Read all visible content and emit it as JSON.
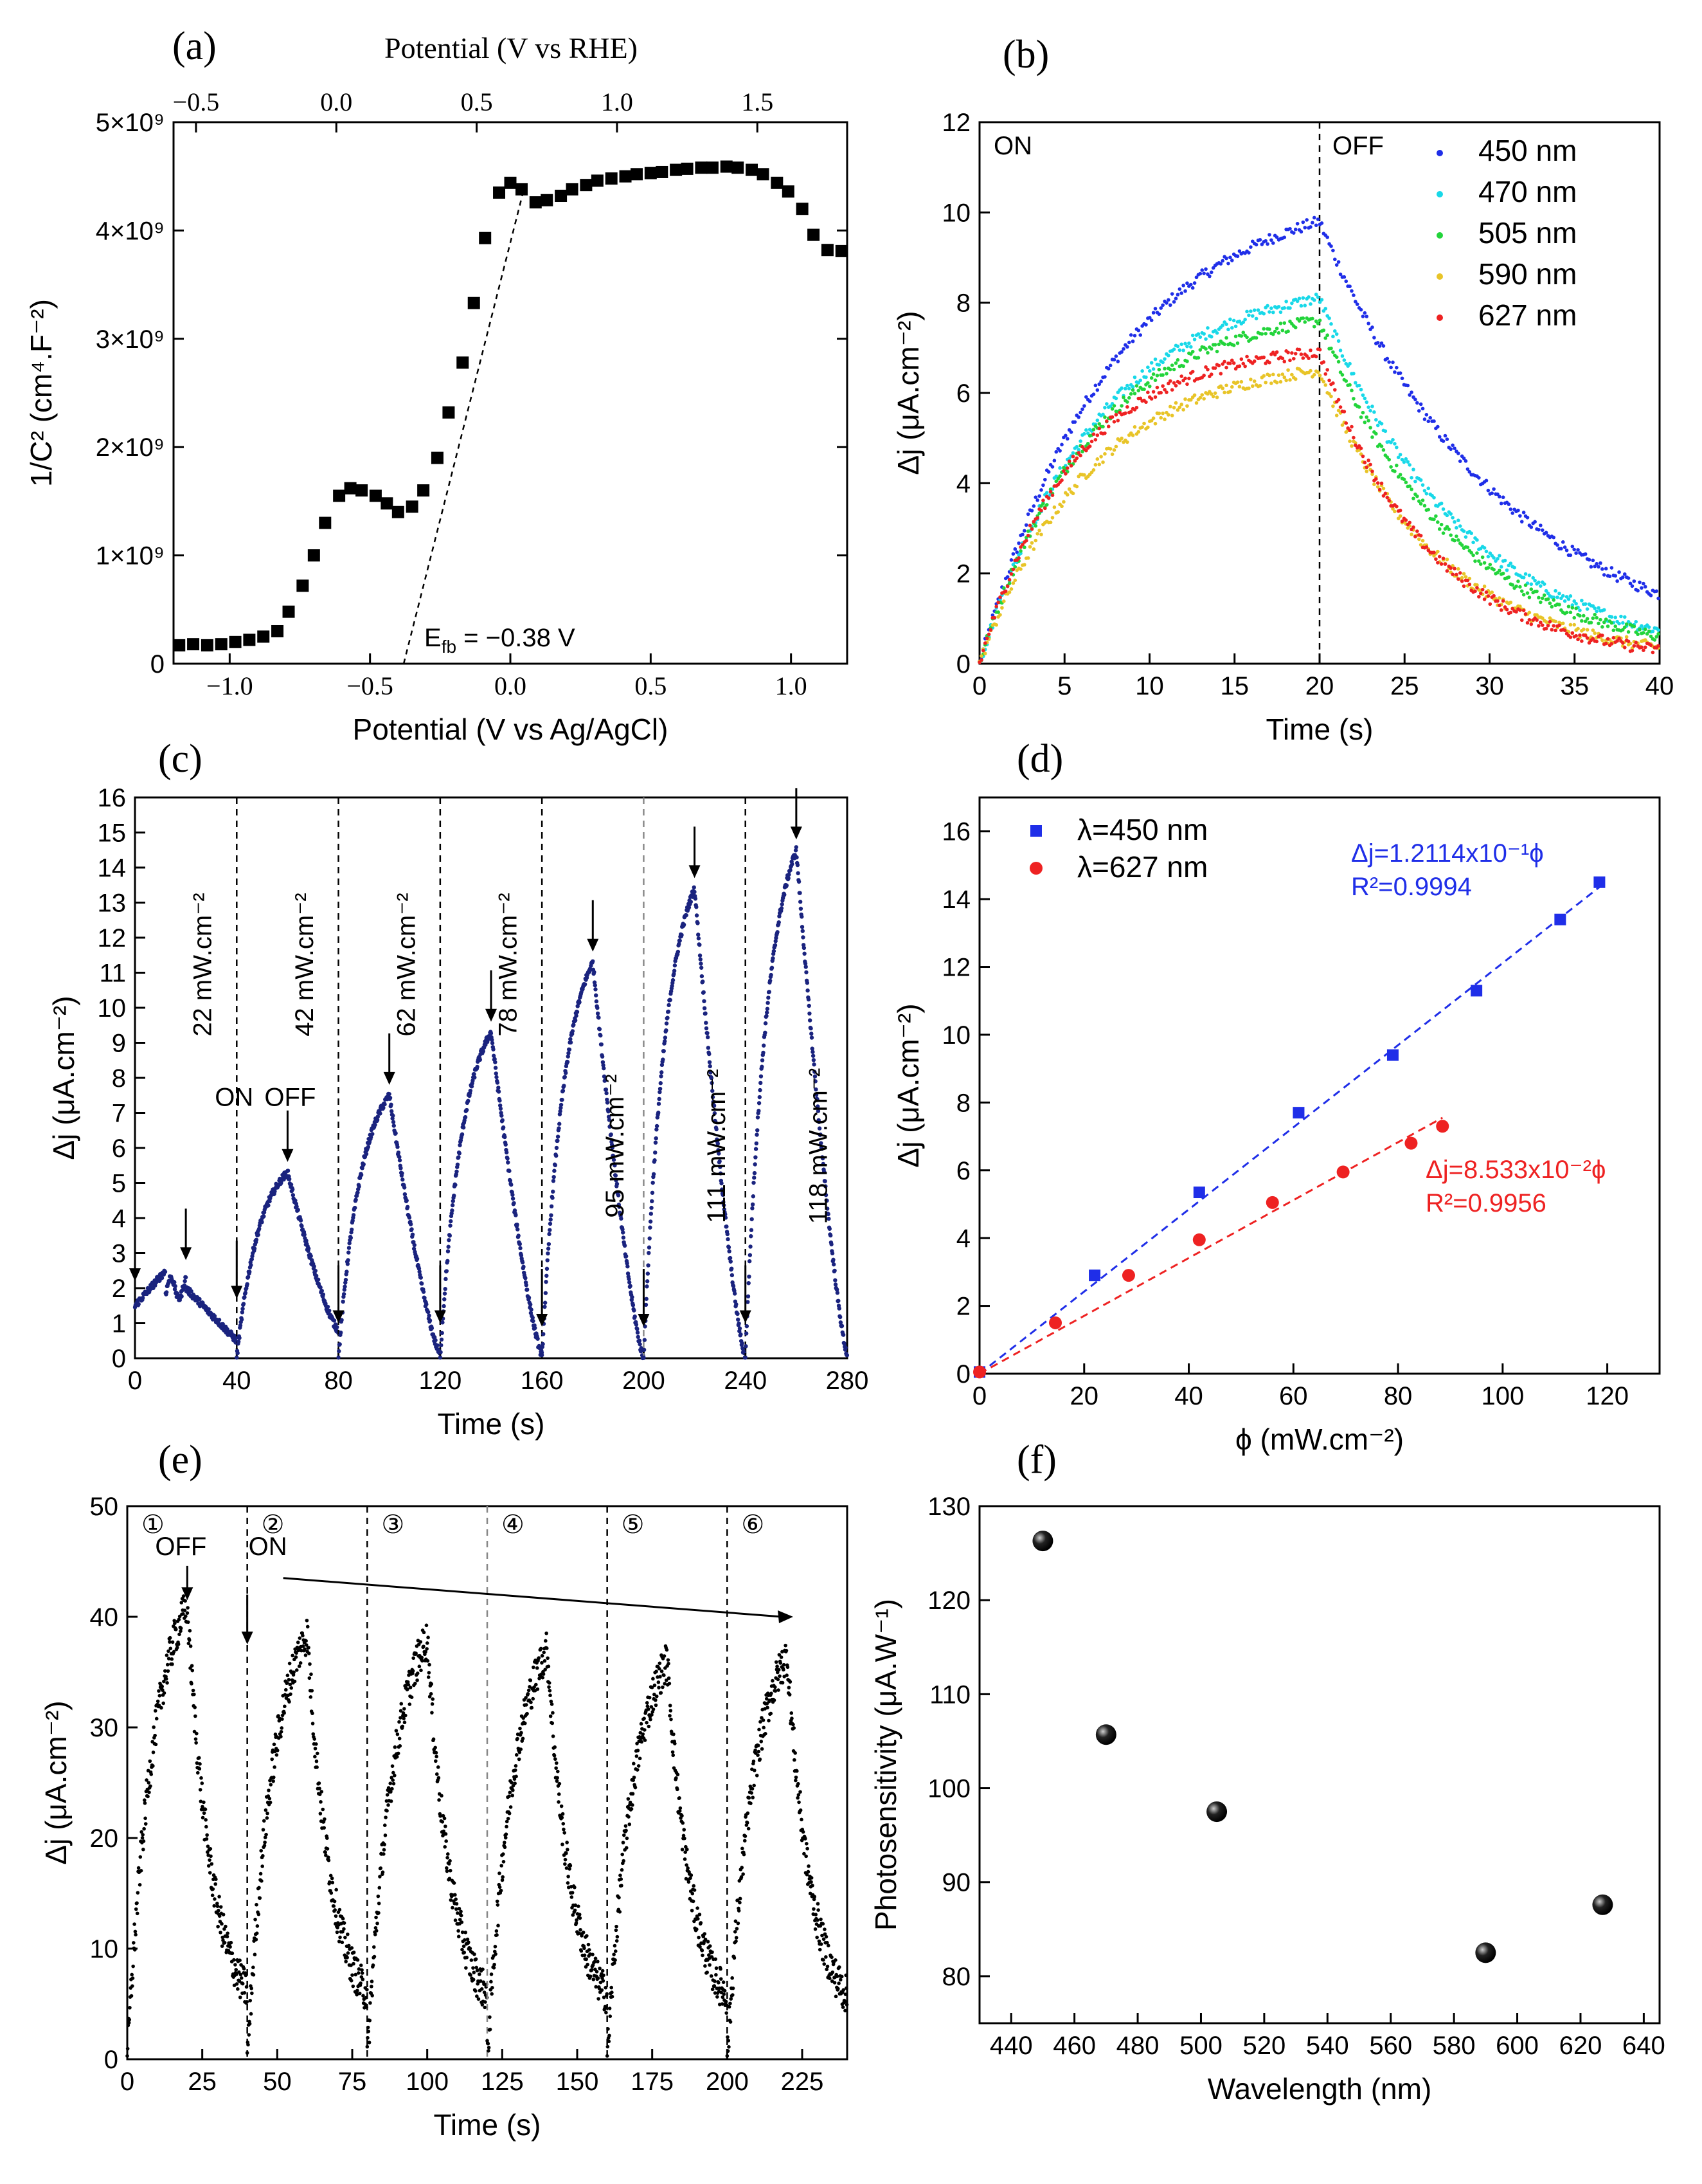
{
  "panels": {
    "a": "(a)",
    "b": "(b)",
    "c": "(c)",
    "d": "(d)",
    "e": "(e)",
    "f": "(f)"
  },
  "colors": {
    "c450": "#1f2ee8",
    "c470": "#18d8e8",
    "c505": "#22d43a",
    "c590": "#e8c428",
    "c627": "#ee2222",
    "navy": "#1a237e",
    "fit450": "#1f2ee8",
    "fit627": "#ee2222"
  },
  "chart_data": [
    {
      "id": "a",
      "type": "scatter",
      "title": "",
      "xlabel": "Potential (V vs Ag/AgCl)",
      "xlabel_top": "Potential (V vs RHE)",
      "ylabel": "1/C² (cm⁴.F⁻²)",
      "xlim": [
        -1.2,
        1.2
      ],
      "ylim": [
        0,
        5000000000.0
      ],
      "x_ticks": [
        "−1.0",
        "−0.5",
        "0.0",
        "0.5",
        "1.0"
      ],
      "x_tick_values": [
        -1.0,
        -0.5,
        0.0,
        0.5,
        1.0
      ],
      "x_top_ticks": [
        "−0.5",
        "0.0",
        "0.5",
        "1.0",
        "1.5"
      ],
      "x_top_tick_values": [
        -0.5,
        0.0,
        0.5,
        1.0,
        1.5
      ],
      "y_ticks": [
        "0",
        "1×10⁹",
        "2×10⁹",
        "3×10⁹",
        "4×10⁹",
        "5×10⁹"
      ],
      "y_tick_values": [
        0,
        1000000000.0,
        2000000000.0,
        3000000000.0,
        4000000000.0,
        5000000000.0
      ],
      "annotation": "E",
      "annotation_sub": "fb",
      "annotation_value": " = −0.38 V",
      "x": [
        -1.18,
        -1.13,
        -1.08,
        -1.03,
        -0.98,
        -0.93,
        -0.88,
        -0.83,
        -0.79,
        -0.74,
        -0.7,
        -0.66,
        -0.61,
        -0.57,
        -0.53,
        -0.48,
        -0.44,
        -0.4,
        -0.35,
        -0.31,
        -0.26,
        -0.22,
        -0.17,
        -0.13,
        -0.09,
        -0.04,
        0.0,
        0.04,
        0.09,
        0.13,
        0.18,
        0.22,
        0.27,
        0.31,
        0.36,
        0.41,
        0.45,
        0.5,
        0.54,
        0.59,
        0.63,
        0.68,
        0.72,
        0.77,
        0.81,
        0.86,
        0.9,
        0.95,
        0.99,
        1.04,
        1.08,
        1.13,
        1.18
      ],
      "y": [
        170000000.0,
        180000000.0,
        170000000.0,
        180000000.0,
        200000000.0,
        220000000.0,
        250000000.0,
        300000000.0,
        480000000.0,
        720000000.0,
        1000000000.0,
        1300000000.0,
        1550000000.0,
        1620000000.0,
        1600000000.0,
        1550000000.0,
        1480000000.0,
        1400000000.0,
        1450000000.0,
        1600000000.0,
        1900000000.0,
        2320000000.0,
        2780000000.0,
        3330000000.0,
        3930000000.0,
        4350000000.0,
        4440000000.0,
        4380000000.0,
        4260000000.0,
        4280000000.0,
        4320000000.0,
        4380000000.0,
        4420000000.0,
        4460000000.0,
        4480000000.0,
        4500000000.0,
        4520000000.0,
        4530000000.0,
        4540000000.0,
        4560000000.0,
        4570000000.0,
        4580000000.0,
        4580000000.0,
        4590000000.0,
        4580000000.0,
        4560000000.0,
        4520000000.0,
        4440000000.0,
        4360000000.0,
        4200000000.0,
        3960000000.0,
        3820000000.0,
        3810000000.0
      ],
      "fit_line": {
        "x": [
          -0.38,
          0.05
        ],
        "y": [
          0,
          4400000000.0
        ]
      }
    },
    {
      "id": "b",
      "type": "scatter",
      "xlabel": "Time (s)",
      "ylabel": "Δj (μA.cm⁻²)",
      "xlim": [
        0,
        40
      ],
      "ylim": [
        0,
        12
      ],
      "x_ticks": [
        "0",
        "5",
        "10",
        "15",
        "20",
        "25",
        "30",
        "35",
        "40"
      ],
      "x_tick_values": [
        0,
        5,
        10,
        15,
        20,
        25,
        30,
        35,
        40
      ],
      "y_ticks": [
        "0",
        "2",
        "4",
        "6",
        "8",
        "10",
        "12"
      ],
      "y_tick_values": [
        0,
        2,
        4,
        6,
        8,
        10,
        12
      ],
      "on_label": "ON",
      "off_label": "OFF",
      "switch_time": 20,
      "series": [
        {
          "name": "450 nm",
          "color_key": "c450",
          "peak": 9.8,
          "tau_on": 8.0,
          "tau_off": 11.0,
          "offset": 0.0
        },
        {
          "name": "470 nm",
          "color_key": "c470",
          "peak": 8.1,
          "tau_on": 7.0,
          "tau_off": 8.5,
          "offset": 0.0
        },
        {
          "name": "505 nm",
          "color_key": "c505",
          "peak": 7.6,
          "tau_on": 6.5,
          "tau_off": 8.0,
          "offset": 0.0
        },
        {
          "name": "590 nm",
          "color_key": "c590",
          "peak": 6.5,
          "tau_on": 6.5,
          "tau_off": 7.0,
          "offset": 0.0
        },
        {
          "name": "627 nm",
          "color_key": "c627",
          "peak": 6.9,
          "tau_on": 5.5,
          "tau_off": 6.5,
          "offset": 0.0
        }
      ]
    },
    {
      "id": "c",
      "type": "scatter",
      "xlabel": "Time (s)",
      "ylabel": "Δj (μA.cm⁻²)",
      "xlim": [
        0,
        280
      ],
      "ylim": [
        0,
        16
      ],
      "x_ticks": [
        "0",
        "40",
        "80",
        "120",
        "160",
        "200",
        "240",
        "280"
      ],
      "x_tick_values": [
        0,
        40,
        80,
        120,
        160,
        200,
        240,
        280
      ],
      "y_ticks": [
        "0",
        "1",
        "2",
        "3",
        "4",
        "5",
        "6",
        "7",
        "8",
        "9",
        "10",
        "11",
        "12",
        "13",
        "14",
        "15",
        "16"
      ],
      "y_tick_values": [
        0,
        1,
        2,
        3,
        4,
        5,
        6,
        7,
        8,
        9,
        10,
        11,
        12,
        13,
        14,
        15,
        16
      ],
      "on_label": "ON",
      "off_label": "OFF",
      "cycles": [
        {
          "start": 0,
          "peak": 2.5,
          "end": 0.5,
          "label": "22 mW.cm⁻²"
        },
        {
          "start": 40,
          "peak": 5.3,
          "end": 0.8,
          "label": "42 mW.cm⁻²"
        },
        {
          "start": 80,
          "peak": 7.5,
          "end": 0.1,
          "label": "62 mW.cm⁻²"
        },
        {
          "start": 120,
          "peak": 9.3,
          "end": 0.1,
          "label": "78 mW.cm⁻²"
        },
        {
          "start": 160,
          "peak": 11.3,
          "end": 0.0,
          "label": "95 mW.cm⁻²"
        },
        {
          "start": 200,
          "peak": 13.4,
          "end": 0.0,
          "label": "111 mW.cm⁻²"
        },
        {
          "start": 240,
          "peak": 14.5,
          "end": 0.1,
          "label": "118 mW.cm⁻²"
        }
      ]
    },
    {
      "id": "d",
      "type": "scatter",
      "xlabel": "ϕ (mW.cm⁻²)",
      "ylabel": "Δj (μA.cm⁻²)",
      "xlim": [
        0,
        130
      ],
      "ylim": [
        0,
        17
      ],
      "x_ticks": [
        "0",
        "20",
        "40",
        "60",
        "80",
        "100",
        "120"
      ],
      "x_tick_values": [
        0,
        20,
        40,
        60,
        80,
        100,
        120
      ],
      "y_ticks": [
        "0",
        "2",
        "4",
        "6",
        "8",
        "10",
        "12",
        "14",
        "16"
      ],
      "y_tick_values": [
        0,
        2,
        4,
        6,
        8,
        10,
        12,
        14,
        16
      ],
      "series": [
        {
          "name": "λ=450 nm",
          "color_key": "c450",
          "x": [
            0,
            22,
            42,
            61,
            79,
            95,
            111,
            118.5
          ],
          "y": [
            0.05,
            2.9,
            5.35,
            7.7,
            9.4,
            11.3,
            13.4,
            14.5
          ],
          "fit_slope": 0.12114,
          "fit_xmax": 118.5,
          "eq": "Δj=1.2114x10⁻¹ϕ",
          "r2": "R²=0.9994"
        },
        {
          "name": "λ=627 nm",
          "color_key": "c627",
          "x": [
            0,
            14.5,
            28.5,
            42,
            56,
            69.5,
            82.5,
            88.5
          ],
          "y": [
            0.05,
            1.5,
            2.9,
            3.95,
            5.05,
            5.95,
            6.8,
            7.3
          ],
          "fit_slope": 0.08533,
          "fit_xmax": 88.5,
          "eq": "Δj=8.533x10⁻²ϕ",
          "r2": "R²=0.9956"
        }
      ]
    },
    {
      "id": "e",
      "type": "scatter",
      "xlabel": "Time (s)",
      "ylabel": "Δj (μA.cm⁻²)",
      "xlim": [
        0,
        240
      ],
      "ylim": [
        0,
        50
      ],
      "x_ticks": [
        "0",
        "25",
        "50",
        "75",
        "100",
        "125",
        "150",
        "175",
        "200",
        "225"
      ],
      "x_tick_values": [
        0,
        25,
        50,
        75,
        100,
        125,
        150,
        175,
        200,
        225
      ],
      "y_ticks": [
        "0",
        "10",
        "20",
        "30",
        "40",
        "50"
      ],
      "y_tick_values": [
        0,
        10,
        20,
        30,
        40,
        50
      ],
      "on_label": "ON",
      "off_label": "OFF",
      "cycle_labels": [
        "①",
        "②",
        "③",
        "④",
        "⑤",
        "⑥"
      ],
      "cycles": [
        {
          "start": 0,
          "peak": 41
        },
        {
          "start": 40,
          "peak": 38.5
        },
        {
          "start": 80,
          "peak": 38
        },
        {
          "start": 120,
          "peak": 37
        },
        {
          "start": 160,
          "peak": 36
        },
        {
          "start": 200,
          "peak": 36.5
        }
      ]
    },
    {
      "id": "f",
      "type": "scatter",
      "xlabel": "Wavelength (nm)",
      "ylabel": "Photosensitivity (μA.W⁻¹)",
      "xlim": [
        430,
        645
      ],
      "ylim": [
        75,
        130
      ],
      "x_ticks": [
        "440",
        "460",
        "480",
        "500",
        "520",
        "540",
        "560",
        "580",
        "600",
        "620",
        "640"
      ],
      "x_tick_values": [
        440,
        460,
        480,
        500,
        520,
        540,
        560,
        580,
        600,
        620,
        640
      ],
      "y_ticks": [
        "80",
        "90",
        "100",
        "110",
        "120",
        "130"
      ],
      "y_tick_values": [
        80,
        90,
        100,
        110,
        120,
        130
      ],
      "x": [
        450,
        470,
        505,
        590,
        627
      ],
      "y": [
        126.3,
        105.7,
        97.5,
        82.5,
        87.6
      ]
    }
  ]
}
